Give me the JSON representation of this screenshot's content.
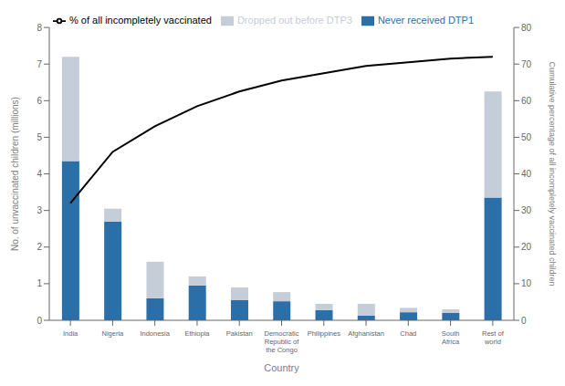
{
  "chart_data": {
    "type": "bar",
    "stacked": true,
    "grid": false,
    "legend": "upper left",
    "xlabel": "Country",
    "ylabel": "No. of unvaccinated children (millions)",
    "y2label": "Cumulative percentage of all incompletely vaccinated children",
    "categories": [
      "India",
      "Nigeria",
      "Indonesia",
      "Ethiopia",
      "Pakistan",
      "Democratic\nRepublic of\nthe Congo",
      "Philippines",
      "Afghanistan",
      "Chad",
      "South\nAfrica",
      "Rest of\nworld"
    ],
    "ylim": [
      0,
      8
    ],
    "yticks": [
      0,
      1,
      2,
      3,
      4,
      5,
      6,
      7,
      8
    ],
    "y2lim": [
      0,
      80
    ],
    "y2ticks": [
      0,
      10,
      20,
      30,
      40,
      50,
      60,
      70,
      80
    ],
    "series": [
      {
        "name": "Never received DTP1",
        "color": "#2b6fa8",
        "values": [
          4.35,
          2.7,
          0.6,
          0.95,
          0.55,
          0.52,
          0.28,
          0.13,
          0.22,
          0.2,
          3.35
        ]
      },
      {
        "name": "Dropped out before DTP3",
        "color": "#c5cdd8",
        "values": [
          2.85,
          0.35,
          1.0,
          0.25,
          0.35,
          0.25,
          0.17,
          0.32,
          0.12,
          0.1,
          2.9
        ]
      },
      {
        "name": "% of all incompletely vaccinated",
        "color": "#000000",
        "type": "line",
        "axis": "y2",
        "values": [
          32,
          46,
          53,
          58.5,
          62.5,
          65.5,
          67.5,
          69.5,
          70.5,
          71.5,
          72
        ]
      }
    ]
  }
}
